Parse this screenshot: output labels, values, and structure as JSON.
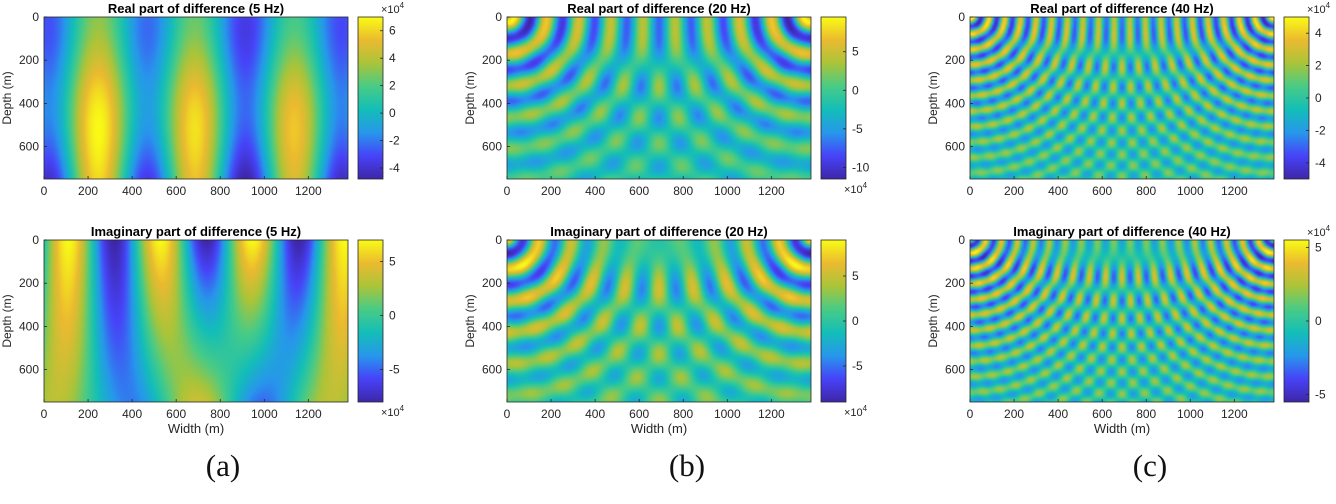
{
  "captions": [
    "(a)",
    "(b)",
    "(c)"
  ],
  "colormap": [
    "#3e26a8",
    "#4743f8",
    "#2797eb",
    "#13beb8",
    "#48cb86",
    "#aac439",
    "#ebba30",
    "#f9fb15"
  ],
  "chart_data": [
    {
      "type": "heatmap",
      "title": "Real part of difference (5 Hz)",
      "xlabel": "",
      "ylabel": "Depth (m)",
      "xlim": [
        0,
        1380
      ],
      "ylim": [
        750,
        0
      ],
      "xticks": [
        0,
        200,
        400,
        600,
        800,
        1000,
        1200
      ],
      "yticks": [
        0,
        200,
        400,
        600
      ],
      "colorbar": {
        "ticks": [
          -4,
          -2,
          0,
          2,
          4,
          6
        ],
        "clim": [
          -4.8,
          7.0
        ],
        "exponent_label": "×10",
        "exponent": "4",
        "exponent_position": "top"
      },
      "field": {
        "kind": "real",
        "frequency_hz": 5
      }
    },
    {
      "type": "heatmap",
      "title": "Real part of difference (20 Hz)",
      "xlabel": "",
      "ylabel": "Depth (m)",
      "xlim": [
        0,
        1380
      ],
      "ylim": [
        750,
        0
      ],
      "xticks": [
        0,
        200,
        400,
        600,
        800,
        1000,
        1200
      ],
      "yticks": [
        0,
        200,
        400,
        600
      ],
      "colorbar": {
        "ticks": [
          -10,
          -5,
          0,
          5
        ],
        "clim": [
          -11.5,
          9.5
        ],
        "exponent_label": "×10",
        "exponent": "4",
        "exponent_position": "bottom"
      },
      "field": {
        "kind": "real",
        "frequency_hz": 20
      }
    },
    {
      "type": "heatmap",
      "title": "Real part of difference (40 Hz)",
      "xlabel": "",
      "ylabel": "Depth (m)",
      "xlim": [
        0,
        1380
      ],
      "ylim": [
        750,
        0
      ],
      "xticks": [
        0,
        200,
        400,
        600,
        800,
        1000,
        1200
      ],
      "yticks": [
        0,
        200,
        400,
        600
      ],
      "colorbar": {
        "ticks": [
          -4,
          -2,
          0,
          2,
          4
        ],
        "clim": [
          -5.0,
          5.0
        ],
        "exponent_label": "×10",
        "exponent": "4",
        "exponent_position": "top"
      },
      "field": {
        "kind": "real",
        "frequency_hz": 40
      }
    },
    {
      "type": "heatmap",
      "title": "Imaginary part of difference (5 Hz)",
      "xlabel": "Width (m)",
      "ylabel": "Depth (m)",
      "xlim": [
        0,
        1380
      ],
      "ylim": [
        750,
        0
      ],
      "xticks": [
        0,
        200,
        400,
        600,
        800,
        1000,
        1200
      ],
      "yticks": [
        0,
        200,
        400,
        600
      ],
      "colorbar": {
        "ticks": [
          -5,
          0,
          5
        ],
        "clim": [
          -8.0,
          7.0
        ],
        "exponent_label": "×10",
        "exponent": "4",
        "exponent_position": "bottom"
      },
      "field": {
        "kind": "imag",
        "frequency_hz": 5
      }
    },
    {
      "type": "heatmap",
      "title": "Imaginary part of difference (20 Hz)",
      "xlabel": "Width (m)",
      "ylabel": "Depth (m)",
      "xlim": [
        0,
        1380
      ],
      "ylim": [
        750,
        0
      ],
      "xticks": [
        0,
        200,
        400,
        600,
        800,
        1000,
        1200
      ],
      "yticks": [
        0,
        200,
        400,
        600
      ],
      "colorbar": {
        "ticks": [
          -5,
          0,
          5
        ],
        "clim": [
          -9.0,
          9.0
        ],
        "exponent_label": "×10",
        "exponent": "4",
        "exponent_position": "bottom"
      },
      "field": {
        "kind": "imag",
        "frequency_hz": 20
      }
    },
    {
      "type": "heatmap",
      "title": "Imaginary part of difference (40 Hz)",
      "xlabel": "Width (m)",
      "ylabel": "Depth (m)",
      "xlim": [
        0,
        1380
      ],
      "ylim": [
        750,
        0
      ],
      "xticks": [
        0,
        200,
        400,
        600,
        800,
        1000,
        1200
      ],
      "yticks": [
        0,
        200,
        400,
        600
      ],
      "colorbar": {
        "ticks": [
          -5,
          0,
          5
        ],
        "clim": [
          -5.5,
          5.5
        ],
        "exponent_label": "×10",
        "exponent": "4",
        "exponent_position": "top"
      },
      "field": {
        "kind": "imag",
        "frequency_hz": 40
      }
    }
  ]
}
